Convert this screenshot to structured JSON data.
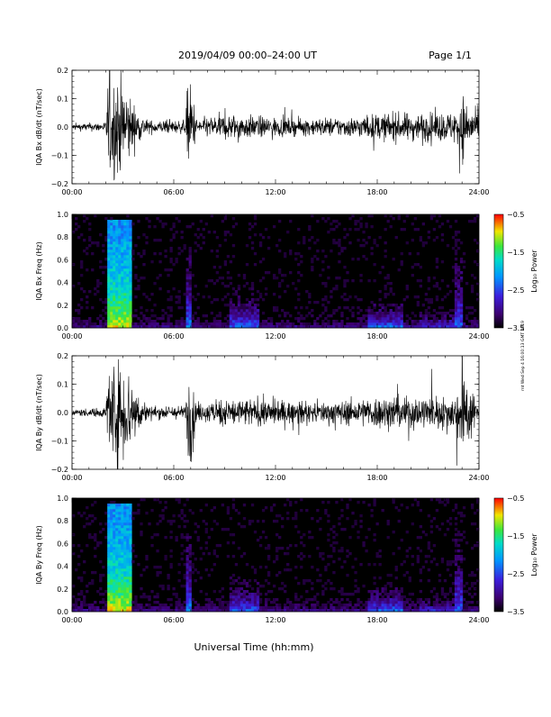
{
  "header": {
    "title": "2019/04/09  00:00–24:00 UT",
    "page": "Page 1/1"
  },
  "footer": {
    "x_title": "Universal Time (hh:mm)",
    "side_stamp": "rnt Wed Sep 4 16:00:13 GMT 2019"
  },
  "chart_data": [
    {
      "type": "line",
      "ylabel": "IQA Bx dB/dt (nT/sec)",
      "xlim": [
        0,
        24
      ],
      "ylim": [
        -0.2,
        0.2
      ],
      "x_ticks": [
        "00:00",
        "06:00",
        "12:00",
        "18:00",
        "24:00"
      ],
      "y_ticks": [
        "0.2",
        "0.1",
        "0.0",
        "−0.1",
        "−0.2"
      ],
      "grid": false,
      "activity_profile": [
        {
          "x": 0,
          "amplitude": 0.02
        },
        {
          "x": 2.0,
          "amplitude": 0.03
        },
        {
          "x": 2.1,
          "amplitude": 0.3
        },
        {
          "x": 3.0,
          "amplitude": 0.3
        },
        {
          "x": 3.8,
          "amplitude": 0.1
        },
        {
          "x": 4.5,
          "amplitude": 0.04
        },
        {
          "x": 6.7,
          "amplitude": 0.04
        },
        {
          "x": 6.8,
          "amplitude": 0.25
        },
        {
          "x": 7.1,
          "amplitude": 0.25
        },
        {
          "x": 7.3,
          "amplitude": 0.05
        },
        {
          "x": 9.2,
          "amplitude": 0.08
        },
        {
          "x": 10.5,
          "amplitude": 0.07
        },
        {
          "x": 13,
          "amplitude": 0.05
        },
        {
          "x": 16.5,
          "amplitude": 0.06
        },
        {
          "x": 18,
          "amplitude": 0.08
        },
        {
          "x": 22.5,
          "amplitude": 0.09
        },
        {
          "x": 23,
          "amplitude": 0.2
        },
        {
          "x": 24,
          "amplitude": 0.06
        }
      ]
    },
    {
      "type": "heatmap",
      "ylabel": "IQA Bx Freq (Hz)",
      "xlim": [
        0,
        24
      ],
      "ylim": [
        0.0,
        1.0
      ],
      "x_ticks": [
        "00:00",
        "06:00",
        "12:00",
        "18:00",
        "24:00"
      ],
      "y_ticks": [
        "1.0",
        "0.8",
        "0.6",
        "0.4",
        "0.2",
        "0.0"
      ],
      "colorbar": {
        "label": "Log₁₀ Power",
        "range": [
          -3.5,
          -0.5
        ],
        "ticks": [
          "−0.5",
          "−1.5",
          "−2.5",
          "−3.5"
        ]
      },
      "features": [
        {
          "x": [
            2.1,
            3.5
          ],
          "fmax": 0.95,
          "power": -1.0
        },
        {
          "x": [
            6.8,
            7.1
          ],
          "fmax": 0.7,
          "power": -2.2
        },
        {
          "x": [
            9.3,
            11.0
          ],
          "fmax": 0.35,
          "power": -2.3
        },
        {
          "x": [
            17.5,
            19.5
          ],
          "fmax": 0.22,
          "power": -2.2
        },
        {
          "x": [
            20.5,
            23.0
          ],
          "fmax": 0.3,
          "power": -2.6
        },
        {
          "x": [
            22.6,
            23.0
          ],
          "fmax": 0.95,
          "power": -2.4
        }
      ]
    },
    {
      "type": "line",
      "ylabel": "IQA By dB/dt (nT/sec)",
      "xlim": [
        0,
        24
      ],
      "ylim": [
        -0.2,
        0.2
      ],
      "x_ticks": [
        "00:00",
        "06:00",
        "12:00",
        "18:00",
        "24:00"
      ],
      "y_ticks": [
        "0.2",
        "0.1",
        "0.0",
        "−0.1",
        "−0.2"
      ],
      "grid": false,
      "activity_profile": [
        {
          "x": 0,
          "amplitude": 0.02
        },
        {
          "x": 2.0,
          "amplitude": 0.03
        },
        {
          "x": 2.1,
          "amplitude": 0.3
        },
        {
          "x": 3.2,
          "amplitude": 0.3
        },
        {
          "x": 4.0,
          "amplitude": 0.1
        },
        {
          "x": 4.6,
          "amplitude": 0.04
        },
        {
          "x": 6.7,
          "amplitude": 0.04
        },
        {
          "x": 6.8,
          "amplitude": 0.3
        },
        {
          "x": 7.1,
          "amplitude": 0.3
        },
        {
          "x": 7.3,
          "amplitude": 0.05
        },
        {
          "x": 9.2,
          "amplitude": 0.09
        },
        {
          "x": 11.5,
          "amplitude": 0.08
        },
        {
          "x": 14,
          "amplitude": 0.06
        },
        {
          "x": 17,
          "amplitude": 0.08
        },
        {
          "x": 18,
          "amplitude": 0.1
        },
        {
          "x": 22.5,
          "amplitude": 0.1
        },
        {
          "x": 23,
          "amplitude": 0.25
        },
        {
          "x": 24,
          "amplitude": 0.05
        }
      ]
    },
    {
      "type": "heatmap",
      "ylabel": "IQA By Freq (Hz)",
      "xlim": [
        0,
        24
      ],
      "ylim": [
        0.0,
        1.0
      ],
      "x_ticks": [
        "00:00",
        "06:00",
        "12:00",
        "18:00",
        "24:00"
      ],
      "y_ticks": [
        "1.0",
        "0.8",
        "0.6",
        "0.4",
        "0.2",
        "0.0"
      ],
      "colorbar": {
        "label": "Log₁₀ Power",
        "range": [
          -3.5,
          -0.5
        ],
        "ticks": [
          "−0.5",
          "−1.5",
          "−2.5",
          "−3.5"
        ]
      },
      "features": [
        {
          "x": [
            2.1,
            3.5
          ],
          "fmax": 0.95,
          "power": -1.0
        },
        {
          "x": [
            6.8,
            7.1
          ],
          "fmax": 0.7,
          "power": -2.2
        },
        {
          "x": [
            9.3,
            11.0
          ],
          "fmax": 0.3,
          "power": -2.3
        },
        {
          "x": [
            17.5,
            19.5
          ],
          "fmax": 0.22,
          "power": -2.2
        },
        {
          "x": [
            20.5,
            23.0
          ],
          "fmax": 0.25,
          "power": -2.6
        },
        {
          "x": [
            22.6,
            23.0
          ],
          "fmax": 0.95,
          "power": -2.4
        }
      ]
    }
  ]
}
